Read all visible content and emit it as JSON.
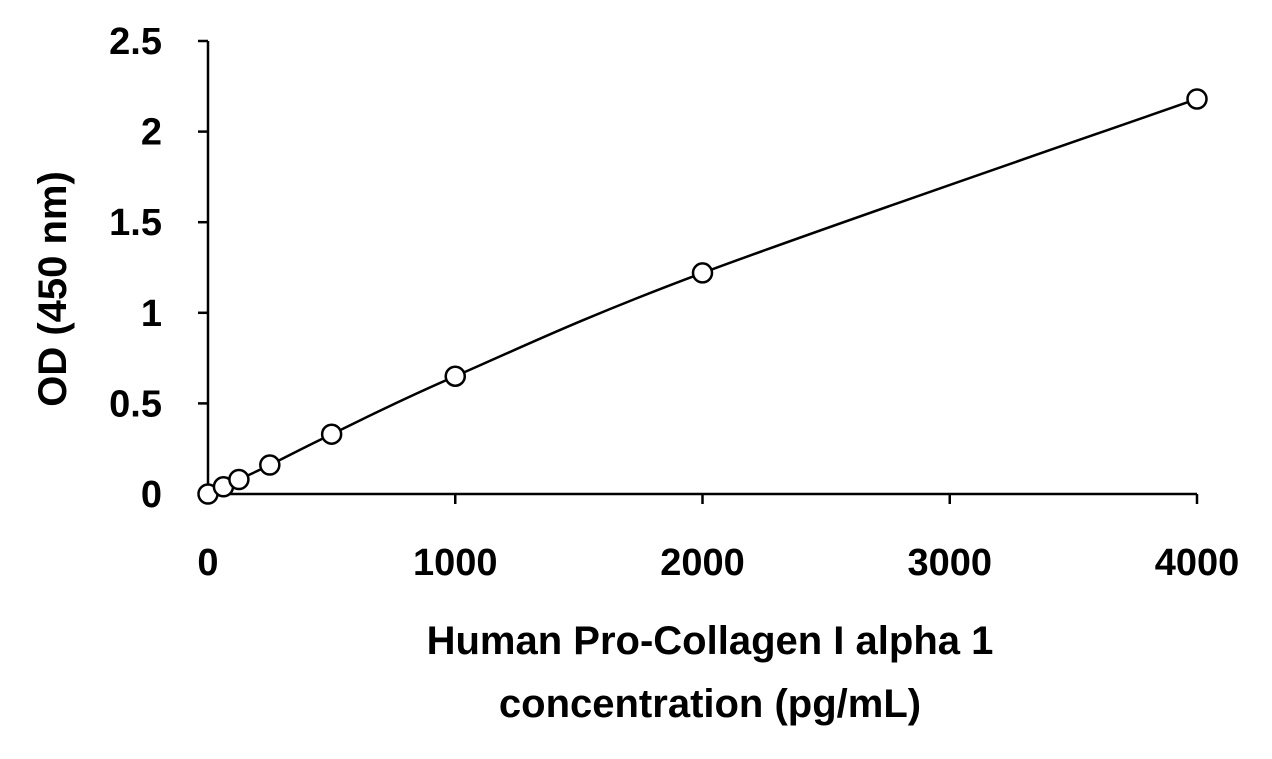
{
  "chart_data": {
    "type": "scatter",
    "title": "",
    "xlabel_lines": [
      "Human Pro-Collagen I alpha 1",
      "concentration (pg/mL)"
    ],
    "ylabel": "OD (450 nm)",
    "xlim": [
      0,
      4000
    ],
    "ylim": [
      0,
      2.5
    ],
    "xticks": [
      0,
      1000,
      2000,
      3000,
      4000
    ],
    "xtick_labels": [
      "0",
      "1000",
      "2000",
      "3000",
      "4000"
    ],
    "yticks": [
      0,
      0.5,
      1,
      1.5,
      2,
      2.5
    ],
    "ytick_labels": [
      "0",
      "0.5",
      "1",
      "1.5",
      "2",
      "2.5"
    ],
    "grid": false,
    "legend": "none",
    "marker": "open-circle",
    "fit_curve": "smooth",
    "series": [
      {
        "x": [
          0,
          62.5,
          125,
          250,
          500,
          1000,
          2000,
          4000
        ],
        "y": [
          0.0,
          0.04,
          0.08,
          0.16,
          0.33,
          0.65,
          1.22,
          2.18
        ]
      }
    ],
    "colors": {
      "line": "#000000",
      "marker_stroke": "#000000",
      "marker_fill": "#ffffff"
    }
  }
}
